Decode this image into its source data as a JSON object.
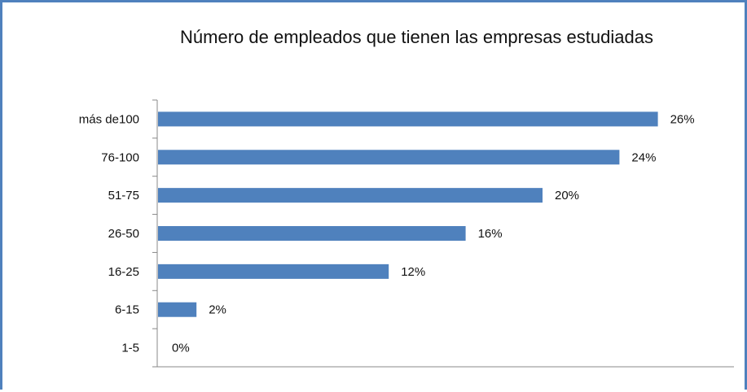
{
  "chart_data": {
    "type": "bar",
    "orientation": "horizontal",
    "title": "Número de empleados que tienen las empresas estudiadas",
    "categories": [
      "más de100",
      "76-100",
      "51-75",
      "26-50",
      "16-25",
      "6-15",
      "1-5"
    ],
    "values": [
      26,
      24,
      20,
      16,
      12,
      2,
      0
    ],
    "data_labels": [
      "26%",
      "24%",
      "20%",
      "16%",
      "12%",
      "2%",
      "0%"
    ],
    "unit": "%",
    "xlim": [
      0,
      30
    ],
    "grid": false,
    "legend": "none",
    "bar_color": "#4f81bd"
  }
}
